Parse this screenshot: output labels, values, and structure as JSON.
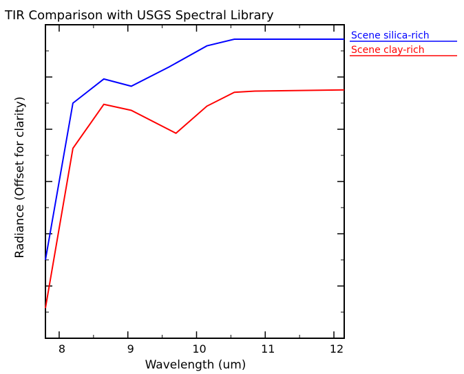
{
  "chart_data": {
    "type": "line",
    "title": "TIR Comparison with USGS Spectral Library",
    "xlabel": "Wavelength (um)",
    "ylabel": "Radiance (Offset for clarity)",
    "xlim": [
      7.8,
      12.15
    ],
    "ylim": [
      0,
      5.2
    ],
    "x_ticks": [
      8,
      9,
      10,
      11,
      12
    ],
    "y_ticks_count": 6,
    "grid": false,
    "legend_position": "top-right",
    "series": [
      {
        "name": "Scene silica-rich",
        "color": "#0000ff",
        "x": [
          7.8,
          8.2,
          8.65,
          9.05,
          9.6,
          10.15,
          10.55,
          12.15
        ],
        "y": [
          1.3,
          3.9,
          4.3,
          4.18,
          4.5,
          4.85,
          4.96,
          4.96
        ]
      },
      {
        "name": "Scene clay-rich",
        "color": "#ff0000",
        "x": [
          7.8,
          8.2,
          8.65,
          9.05,
          9.7,
          10.15,
          10.55,
          10.85,
          12.15
        ],
        "y": [
          0.5,
          3.15,
          3.88,
          3.78,
          3.4,
          3.85,
          4.08,
          4.1,
          4.12
        ]
      }
    ]
  }
}
